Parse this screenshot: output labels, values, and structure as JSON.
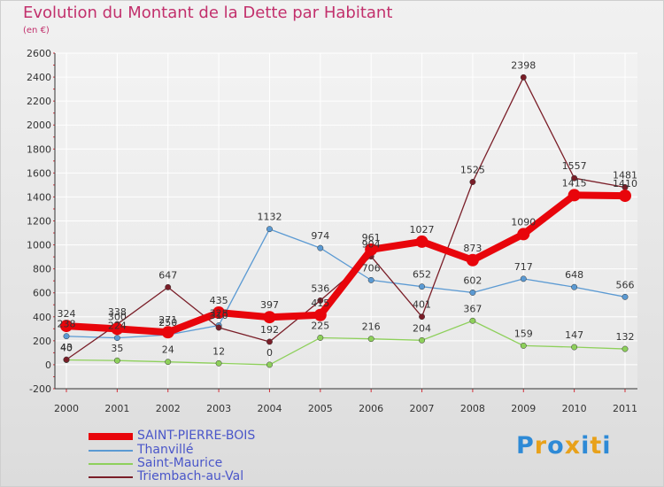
{
  "chart_data": {
    "type": "line",
    "title": "Evolution du Montant de la Dette par Habitant",
    "subtitle": "(en €)",
    "x": [
      "2000",
      "2001",
      "2002",
      "2003",
      "2004",
      "2005",
      "2006",
      "2007",
      "2008",
      "2009",
      "2010",
      "2011"
    ],
    "ylim": [
      -200,
      2600
    ],
    "yticks": [
      -200,
      0,
      200,
      400,
      600,
      800,
      1000,
      1200,
      1400,
      1600,
      1800,
      2000,
      2200,
      2400,
      2600
    ],
    "grid": true,
    "legend_position": "bottom-left",
    "series": [
      {
        "name": "SAINT-PIERRE-BOIS",
        "color": "#e8050b",
        "values": [
          324,
          300,
          271,
          435,
          397,
          415,
          961,
          1027,
          873,
          1090,
          1415,
          1410
        ]
      },
      {
        "name": "Thanvillé",
        "color": "#5b9ad3",
        "values": [
          238,
          224,
          250,
          328,
          1132,
          974,
          706,
          652,
          602,
          717,
          648,
          566
        ]
      },
      {
        "name": "Saint-Maurice",
        "color": "#8ed05b",
        "values": [
          40,
          35,
          24,
          12,
          0,
          225,
          216,
          204,
          367,
          159,
          147,
          132
        ]
      },
      {
        "name": "Triembach-au-Val",
        "color": "#7a1e28",
        "values": [
          43,
          338,
          647,
          310,
          192,
          536,
          904,
          401,
          1525,
          2398,
          1557,
          1481
        ]
      }
    ]
  },
  "logo": {
    "text": "Proxiti",
    "colors": [
      "#2e8ad6",
      "#e8a11a",
      "#2e8ad6",
      "#e8a11a",
      "#2e8ad6",
      "#e8a11a",
      "#2e8ad6"
    ]
  }
}
